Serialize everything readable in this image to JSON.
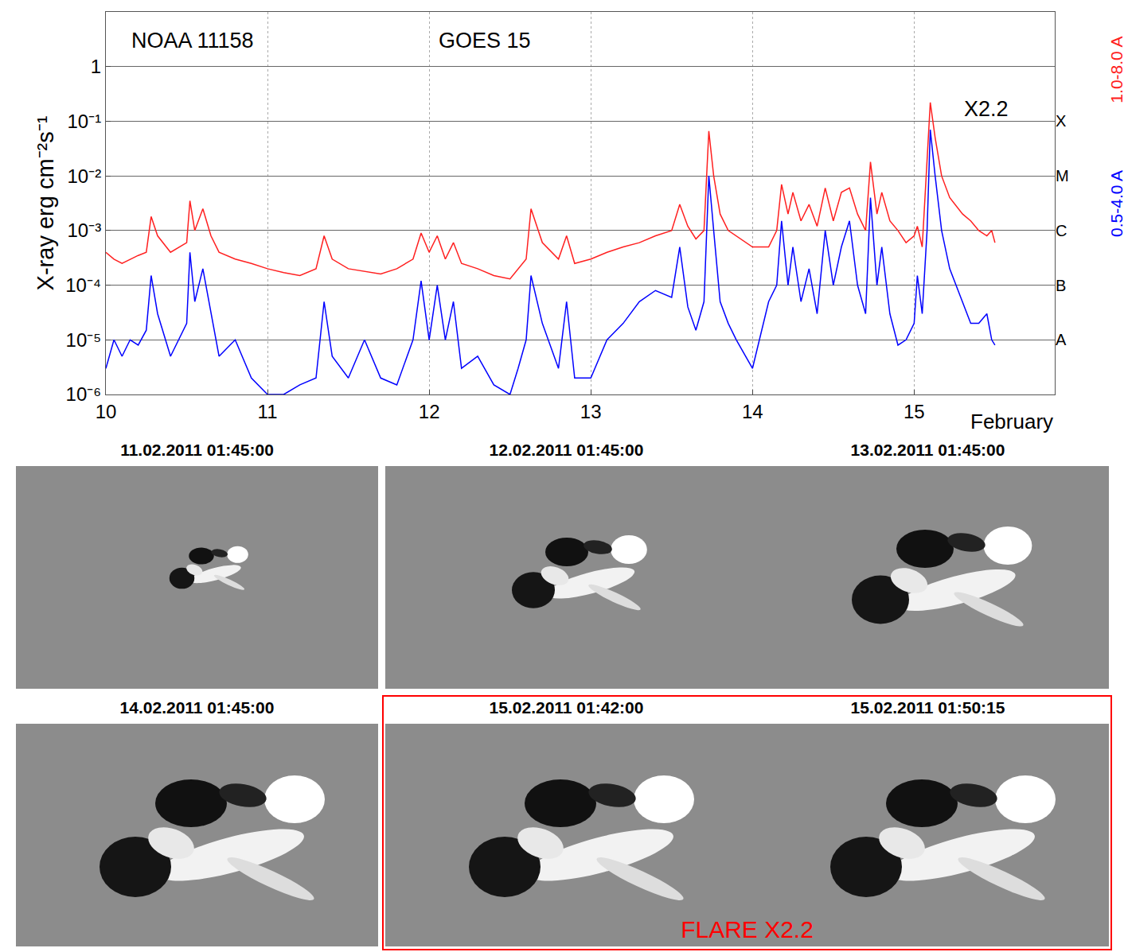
{
  "chart_data": {
    "type": "line",
    "log": "y",
    "grid": true,
    "ylabel": "X-ray erg cm⁻²s⁻¹",
    "xlabel": "February",
    "xlim": [
      10,
      15.87
    ],
    "xticks": [
      10,
      11,
      12,
      13,
      14,
      15
    ],
    "ylim": [
      1e-06,
      10
    ],
    "yticks": [
      {
        "value": 1e-06,
        "label": "10⁻⁶"
      },
      {
        "value": 1e-05,
        "label": "10⁻⁵"
      },
      {
        "value": 0.0001,
        "label": "10⁻⁴"
      },
      {
        "value": 0.001,
        "label": "10⁻³"
      },
      {
        "value": 0.01,
        "label": "10⁻²"
      },
      {
        "value": 0.1,
        "label": "10⁻¹"
      },
      1
    ],
    "y2lim": [
      1e-06,
      10
    ],
    "y2ticks": [
      {
        "value": 1e-05,
        "label": "A"
      },
      {
        "value": 0.0001,
        "label": "B"
      },
      {
        "value": 0.001,
        "label": "C"
      },
      {
        "value": 0.01,
        "label": "M"
      },
      {
        "value": 0.1,
        "label": "X"
      }
    ],
    "annotations": [
      {
        "text": "NOAA 11158",
        "x": 10.15,
        "y": 3
      },
      {
        "text": "GOES 15",
        "x": 12.05,
        "y": 3
      },
      {
        "text": "X2.2",
        "x": 15.3,
        "y": 0.17
      }
    ],
    "x": [
      10.0,
      10.05,
      10.1,
      10.15,
      10.2,
      10.25,
      10.28,
      10.32,
      10.4,
      10.5,
      10.52,
      10.55,
      10.6,
      10.65,
      10.7,
      10.8,
      10.9,
      11.0,
      11.1,
      11.2,
      11.3,
      11.35,
      11.4,
      11.5,
      11.6,
      11.7,
      11.8,
      11.9,
      11.95,
      12.0,
      12.05,
      12.1,
      12.15,
      12.2,
      12.3,
      12.4,
      12.5,
      12.55,
      12.6,
      12.63,
      12.7,
      12.8,
      12.85,
      12.9,
      13.0,
      13.1,
      13.2,
      13.3,
      13.4,
      13.5,
      13.55,
      13.6,
      13.65,
      13.7,
      13.73,
      13.76,
      13.8,
      13.85,
      13.9,
      14.0,
      14.1,
      14.15,
      14.18,
      14.22,
      14.25,
      14.3,
      14.35,
      14.4,
      14.45,
      14.5,
      14.55,
      14.6,
      14.65,
      14.7,
      14.73,
      14.77,
      14.8,
      14.85,
      14.9,
      14.95,
      15.0,
      15.02,
      15.05,
      15.08,
      15.1,
      15.13,
      15.17,
      15.22,
      15.3,
      15.35,
      15.4,
      15.45,
      15.48,
      15.5
    ],
    "series": [
      {
        "name": "1.0-8.0 A",
        "color": "#ff2020",
        "values": [
          0.0004,
          0.0003,
          0.00025,
          0.0003,
          0.00035,
          0.0004,
          0.0018,
          0.0008,
          0.0004,
          0.0006,
          0.0035,
          0.001,
          0.0025,
          0.0008,
          0.0004,
          0.0003,
          0.00025,
          0.0002,
          0.00017,
          0.00015,
          0.0002,
          0.0008,
          0.0003,
          0.0002,
          0.00018,
          0.00016,
          0.0002,
          0.0003,
          0.0009,
          0.0004,
          0.0008,
          0.0003,
          0.0006,
          0.00025,
          0.0002,
          0.00015,
          0.00013,
          0.0002,
          0.0003,
          0.0025,
          0.0006,
          0.0003,
          0.0008,
          0.00025,
          0.0003,
          0.0004,
          0.0005,
          0.0006,
          0.0008,
          0.001,
          0.003,
          0.0012,
          0.0007,
          0.001,
          0.066,
          0.01,
          0.002,
          0.001,
          0.0008,
          0.0005,
          0.0005,
          0.001,
          0.007,
          0.002,
          0.005,
          0.0015,
          0.003,
          0.0012,
          0.006,
          0.0015,
          0.005,
          0.006,
          0.002,
          0.001,
          0.018,
          0.002,
          0.005,
          0.0015,
          0.001,
          0.0006,
          0.0008,
          0.0012,
          0.0005,
          0.02,
          0.22,
          0.05,
          0.01,
          0.004,
          0.002,
          0.0015,
          0.001,
          0.0008,
          0.001,
          0.0006
        ]
      },
      {
        "name": "0.5-4.0 A",
        "color": "#0000ff",
        "values": [
          3e-06,
          1e-05,
          5e-06,
          1e-05,
          8e-06,
          1.5e-05,
          0.00015,
          3e-05,
          5e-06,
          2e-05,
          0.0004,
          5e-05,
          0.0002,
          3e-05,
          5e-06,
          1e-05,
          2e-06,
          1e-06,
          1e-06,
          1.5e-06,
          2e-06,
          5e-05,
          5e-06,
          2e-06,
          1e-05,
          2e-06,
          1.5e-06,
          1e-05,
          0.00012,
          1e-05,
          0.0001,
          1e-05,
          5e-05,
          3e-06,
          5e-06,
          1.5e-06,
          1e-06,
          3e-06,
          1e-05,
          0.00015,
          2e-05,
          3e-06,
          5e-05,
          2e-06,
          2e-06,
          1e-05,
          2e-05,
          5e-05,
          8e-05,
          6e-05,
          0.0005,
          4e-05,
          1.5e-05,
          5e-05,
          0.01,
          0.001,
          5e-05,
          2e-05,
          1e-05,
          3e-06,
          5e-05,
          0.0001,
          0.0015,
          0.0001,
          0.0005,
          5e-05,
          0.0002,
          3e-05,
          0.001,
          0.0001,
          0.0005,
          0.0015,
          0.0001,
          3e-05,
          0.004,
          0.0001,
          0.0005,
          3e-05,
          8e-06,
          1e-05,
          2e-05,
          0.00015,
          3e-05,
          0.001,
          0.07,
          0.01,
          0.001,
          0.0002,
          5e-05,
          2e-05,
          2e-05,
          3e-05,
          1e-05,
          8e-06
        ]
      }
    ]
  },
  "panels": [
    {
      "title": "11.02.2011 01:45:00"
    },
    {
      "title": "12.02.2011 01:45:00"
    },
    {
      "title": "13.02.2011 01:45:00"
    },
    {
      "title": "14.02.2011 01:45:00"
    },
    {
      "title": "15.02.2011 01:42:00"
    },
    {
      "title": "15.02.2011 01:50:15"
    }
  ],
  "flare_label": "FLARE X2.2"
}
